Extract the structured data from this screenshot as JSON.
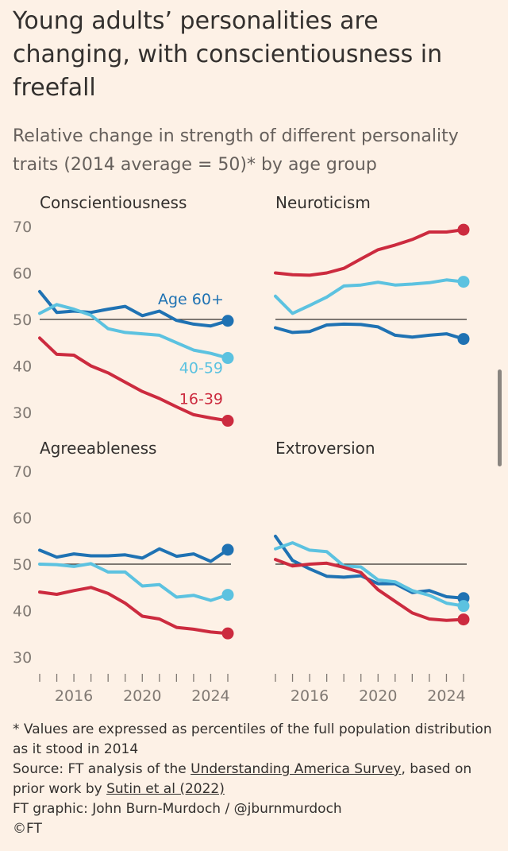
{
  "header": {
    "title": "Young adults’ personalities are changing, with conscientiousness in freefall",
    "subtitle": "Relative change in strength of different personality traits (2014 average = 50)* by age group"
  },
  "colors": {
    "age_60_plus": "#1f72b3",
    "age_40_59": "#5cc2e0",
    "age_16_39": "#cc2b3f",
    "baseline": "#33302e",
    "background": "#fdf1e6"
  },
  "chart_data": {
    "type": "line",
    "x": [
      2014,
      2015,
      2016,
      2017,
      2018,
      2019,
      2020,
      2021,
      2022,
      2023,
      2024,
      2025
    ],
    "x_ticks": [
      2014,
      2015,
      2016,
      2017,
      2018,
      2019,
      2020,
      2021,
      2022,
      2023,
      2024,
      2025
    ],
    "x_tick_labels": [
      "2016",
      "2020",
      "2024"
    ],
    "x_tick_label_values": [
      2016,
      2020,
      2024
    ],
    "y_ticks": [
      70,
      60,
      50,
      40,
      30
    ],
    "ylim": [
      28,
      72
    ],
    "baseline": 50,
    "panels": [
      {
        "name": "Conscientiousness",
        "series_labels": [
          {
            "text": "Age 60+",
            "series": 0
          },
          {
            "text": "40-59",
            "series": 1
          },
          {
            "text": "16-39",
            "series": 2
          }
        ],
        "series": [
          {
            "name": "Age 60+",
            "color": "#1f72b3",
            "values": [
              56,
              51.5,
              51.8,
              51.5,
              52.2,
              52.8,
              50.8,
              51.8,
              49.8,
              49,
              48.6,
              49.7
            ]
          },
          {
            "name": "40-59",
            "color": "#5cc2e0",
            "values": [
              51.3,
              53.2,
              52.2,
              50.9,
              48,
              47.2,
              46.9,
              46.6,
              45,
              43.4,
              42.7,
              41.7
            ]
          },
          {
            "name": "16-39",
            "color": "#cc2b3f",
            "values": [
              46,
              42.5,
              42.3,
              40,
              38.5,
              36.5,
              34.5,
              33,
              31.2,
              29.5,
              28.8,
              28.2
            ]
          }
        ]
      },
      {
        "name": "Neuroticism",
        "series_labels": [],
        "series": [
          {
            "name": "Age 60+",
            "color": "#1f72b3",
            "values": [
              48.2,
              47.2,
              47.4,
              48.8,
              49,
              48.9,
              48.4,
              46.6,
              46.2,
              46.6,
              46.9,
              45.8
            ]
          },
          {
            "name": "40-59",
            "color": "#5cc2e0",
            "values": [
              55,
              51.3,
              53,
              54.8,
              57.2,
              57.4,
              58,
              57.4,
              57.6,
              57.9,
              58.5,
              58.1
            ]
          },
          {
            "name": "16-39",
            "color": "#cc2b3f",
            "values": [
              60,
              59.6,
              59.5,
              60,
              61,
              63,
              65,
              66,
              67.2,
              68.8,
              68.8,
              69.3
            ]
          }
        ]
      },
      {
        "name": "Agreeableness",
        "series_labels": [],
        "series": [
          {
            "name": "Age 60+",
            "color": "#1f72b3",
            "values": [
              53,
              51.5,
              52.2,
              51.8,
              51.8,
              52,
              51.3,
              53.3,
              51.7,
              52.2,
              50.6,
              53.1
            ]
          },
          {
            "name": "40-59",
            "color": "#5cc2e0",
            "values": [
              50,
              49.9,
              49.5,
              50.1,
              48.3,
              48.3,
              45.3,
              45.6,
              42.9,
              43.3,
              42.2,
              43.4
            ]
          },
          {
            "name": "16-39",
            "color": "#cc2b3f",
            "values": [
              44,
              43.5,
              44.3,
              45,
              43.7,
              41.6,
              38.8,
              38.2,
              36.4,
              36,
              35.4,
              35.1
            ]
          }
        ]
      },
      {
        "name": "Extroversion",
        "series_labels": [],
        "series": [
          {
            "name": "Age 60+",
            "color": "#1f72b3",
            "values": [
              56,
              50.8,
              49,
              47.4,
              47.2,
              47.5,
              45.8,
              45.8,
              43.9,
              44.3,
              43,
              42.7
            ]
          },
          {
            "name": "40-59",
            "color": "#5cc2e0",
            "values": [
              53.3,
              54.6,
              53,
              52.7,
              49.6,
              49.4,
              46.6,
              46.2,
              44.3,
              43.3,
              41.6,
              41
            ]
          },
          {
            "name": "16-39",
            "color": "#cc2b3f",
            "values": [
              51,
              49.6,
              50,
              50.2,
              49.3,
              48.2,
              44.5,
              42,
              39.5,
              38.2,
              37.9,
              38.1
            ]
          }
        ]
      }
    ]
  },
  "notes": {
    "footnote": "* Values are expressed as percentiles of the full population distribution as it stood in 2014",
    "source_prefix": "Source: FT analysis of the ",
    "source_link1": "Understanding America Survey",
    "source_mid": ", based on prior work by ",
    "source_link2": "Sutin et al (2022)",
    "graphic": "FT graphic: John Burn-Murdoch / @jburnmurdoch",
    "copyright": "©FT"
  }
}
